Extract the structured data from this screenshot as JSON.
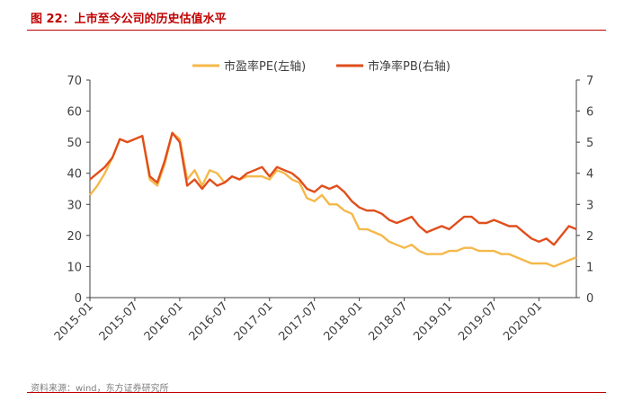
{
  "header": {
    "title": "图 22：上市至今公司的历史估值水平"
  },
  "footer": {
    "source": "资料来源：wind，东方证券研究所"
  },
  "colors": {
    "pe": "#f5b84a",
    "pb": "#e04e1c",
    "title": "#c00000"
  },
  "chart_data": {
    "type": "line",
    "title": "图 22：上市至今公司的历史估值水平",
    "x_ticks": [
      "2015-01",
      "2015-07",
      "2016-01",
      "2016-07",
      "2017-01",
      "2017-07",
      "2018-01",
      "2018-07",
      "2019-01",
      "2019-07",
      "2020-01"
    ],
    "x_range": [
      "2015-01",
      "2020-06"
    ],
    "y_left": {
      "min": 0,
      "max": 70,
      "ticks": [
        0,
        10,
        20,
        30,
        40,
        50,
        60,
        70
      ]
    },
    "y_right": {
      "min": 0,
      "max": 7,
      "ticks": [
        0,
        1,
        2,
        3,
        4,
        5,
        6,
        7
      ]
    },
    "legend_position": "top",
    "grid": false,
    "series": [
      {
        "name": "市盈率PE(左轴)",
        "axis": "left",
        "color": "#f5b84a",
        "points": [
          [
            "2015-01",
            33
          ],
          [
            "2015-02",
            36
          ],
          [
            "2015-03",
            40
          ],
          [
            "2015-04",
            45
          ],
          [
            "2015-05",
            51
          ],
          [
            "2015-06",
            50
          ],
          [
            "2015-07",
            51
          ],
          [
            "2015-08",
            52
          ],
          [
            "2015-09",
            38
          ],
          [
            "2015-10",
            36
          ],
          [
            "2015-11",
            43
          ],
          [
            "2015-12",
            53
          ],
          [
            "2016-01",
            51
          ],
          [
            "2016-02",
            38
          ],
          [
            "2016-03",
            41
          ],
          [
            "2016-04",
            36
          ],
          [
            "2016-05",
            41
          ],
          [
            "2016-06",
            40
          ],
          [
            "2016-07",
            37
          ],
          [
            "2016-08",
            39
          ],
          [
            "2016-09",
            38
          ],
          [
            "2016-10",
            39
          ],
          [
            "2016-11",
            39
          ],
          [
            "2016-12",
            39
          ],
          [
            "2017-01",
            38
          ],
          [
            "2017-02",
            41
          ],
          [
            "2017-03",
            40
          ],
          [
            "2017-04",
            38
          ],
          [
            "2017-05",
            37
          ],
          [
            "2017-06",
            32
          ],
          [
            "2017-07",
            31
          ],
          [
            "2017-08",
            33
          ],
          [
            "2017-09",
            30
          ],
          [
            "2017-10",
            30
          ],
          [
            "2017-11",
            28
          ],
          [
            "2017-12",
            27
          ],
          [
            "2018-01",
            22
          ],
          [
            "2018-02",
            22
          ],
          [
            "2018-03",
            21
          ],
          [
            "2018-04",
            20
          ],
          [
            "2018-05",
            18
          ],
          [
            "2018-06",
            17
          ],
          [
            "2018-07",
            16
          ],
          [
            "2018-08",
            17
          ],
          [
            "2018-09",
            15
          ],
          [
            "2018-10",
            14
          ],
          [
            "2018-11",
            14
          ],
          [
            "2018-12",
            14
          ],
          [
            "2019-01",
            15
          ],
          [
            "2019-02",
            15
          ],
          [
            "2019-03",
            16
          ],
          [
            "2019-04",
            16
          ],
          [
            "2019-05",
            15
          ],
          [
            "2019-06",
            15
          ],
          [
            "2019-07",
            15
          ],
          [
            "2019-08",
            14
          ],
          [
            "2019-09",
            14
          ],
          [
            "2019-10",
            13
          ],
          [
            "2019-11",
            12
          ],
          [
            "2019-12",
            11
          ],
          [
            "2020-01",
            11
          ],
          [
            "2020-02",
            11
          ],
          [
            "2020-03",
            10
          ],
          [
            "2020-04",
            11
          ],
          [
            "2020-05",
            12
          ],
          [
            "2020-06",
            13
          ]
        ]
      },
      {
        "name": "市净率PB(右轴)",
        "axis": "right",
        "color": "#e04e1c",
        "points": [
          [
            "2015-01",
            3.8
          ],
          [
            "2015-02",
            4.0
          ],
          [
            "2015-03",
            4.2
          ],
          [
            "2015-04",
            4.5
          ],
          [
            "2015-05",
            5.1
          ],
          [
            "2015-06",
            5.0
          ],
          [
            "2015-07",
            5.1
          ],
          [
            "2015-08",
            5.2
          ],
          [
            "2015-09",
            3.9
          ],
          [
            "2015-10",
            3.7
          ],
          [
            "2015-11",
            4.4
          ],
          [
            "2015-12",
            5.3
          ],
          [
            "2016-01",
            5.0
          ],
          [
            "2016-02",
            3.6
          ],
          [
            "2016-03",
            3.8
          ],
          [
            "2016-04",
            3.5
          ],
          [
            "2016-05",
            3.8
          ],
          [
            "2016-06",
            3.6
          ],
          [
            "2016-07",
            3.7
          ],
          [
            "2016-08",
            3.9
          ],
          [
            "2016-09",
            3.8
          ],
          [
            "2016-10",
            4.0
          ],
          [
            "2016-11",
            4.1
          ],
          [
            "2016-12",
            4.2
          ],
          [
            "2017-01",
            3.9
          ],
          [
            "2017-02",
            4.2
          ],
          [
            "2017-03",
            4.1
          ],
          [
            "2017-04",
            4.0
          ],
          [
            "2017-05",
            3.8
          ],
          [
            "2017-06",
            3.5
          ],
          [
            "2017-07",
            3.4
          ],
          [
            "2017-08",
            3.6
          ],
          [
            "2017-09",
            3.5
          ],
          [
            "2017-10",
            3.6
          ],
          [
            "2017-11",
            3.4
          ],
          [
            "2017-12",
            3.1
          ],
          [
            "2018-01",
            2.9
          ],
          [
            "2018-02",
            2.8
          ],
          [
            "2018-03",
            2.8
          ],
          [
            "2018-04",
            2.7
          ],
          [
            "2018-05",
            2.5
          ],
          [
            "2018-06",
            2.4
          ],
          [
            "2018-07",
            2.5
          ],
          [
            "2018-08",
            2.6
          ],
          [
            "2018-09",
            2.3
          ],
          [
            "2018-10",
            2.1
          ],
          [
            "2018-11",
            2.2
          ],
          [
            "2018-12",
            2.3
          ],
          [
            "2019-01",
            2.2
          ],
          [
            "2019-02",
            2.4
          ],
          [
            "2019-03",
            2.6
          ],
          [
            "2019-04",
            2.6
          ],
          [
            "2019-05",
            2.4
          ],
          [
            "2019-06",
            2.4
          ],
          [
            "2019-07",
            2.5
          ],
          [
            "2019-08",
            2.4
          ],
          [
            "2019-09",
            2.3
          ],
          [
            "2019-10",
            2.3
          ],
          [
            "2019-11",
            2.1
          ],
          [
            "2019-12",
            1.9
          ],
          [
            "2020-01",
            1.8
          ],
          [
            "2020-02",
            1.9
          ],
          [
            "2020-03",
            1.7
          ],
          [
            "2020-04",
            2.0
          ],
          [
            "2020-05",
            2.3
          ],
          [
            "2020-06",
            2.2
          ]
        ]
      }
    ]
  }
}
